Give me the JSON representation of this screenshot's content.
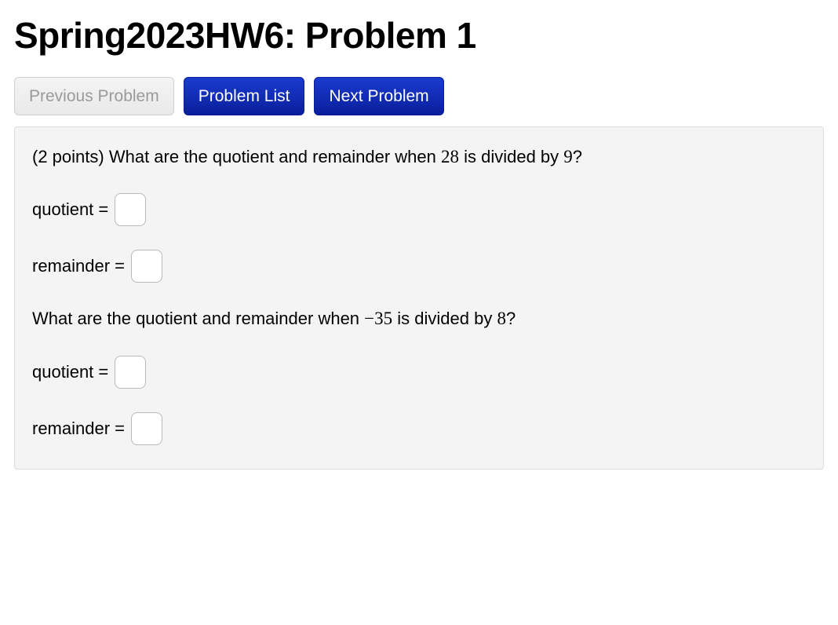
{
  "header": {
    "title": "Spring2023HW6: Problem 1"
  },
  "nav": {
    "prev_label": "Previous Problem",
    "list_label": "Problem List",
    "next_label": "Next Problem"
  },
  "problem": {
    "points_prefix": "(2 points) ",
    "q1_text_a": "What are the quotient and remainder when ",
    "q1_num1": "28",
    "q1_text_b": " is divided by ",
    "q1_num2": "9",
    "q1_text_c": "?",
    "q2_text_a": "What are the quotient and remainder when ",
    "q2_num1": "−35",
    "q2_text_b": " is divided by ",
    "q2_num2": "8",
    "q2_text_c": "?",
    "quotient_label": "quotient =",
    "remainder_label": "remainder =",
    "inputs": {
      "q1_quotient": "",
      "q1_remainder": "",
      "q2_quotient": "",
      "q2_remainder": ""
    }
  },
  "colors": {
    "primary_button_bg_top": "#1a3bd0",
    "primary_button_bg_bottom": "#0a1e9a",
    "primary_button_text": "#ffffff",
    "disabled_button_bg": "#efefef",
    "disabled_button_text": "#9a9a9a",
    "box_bg": "#f4f4f4",
    "box_border": "#dcdcdc",
    "input_border": "#b9b9b9"
  }
}
